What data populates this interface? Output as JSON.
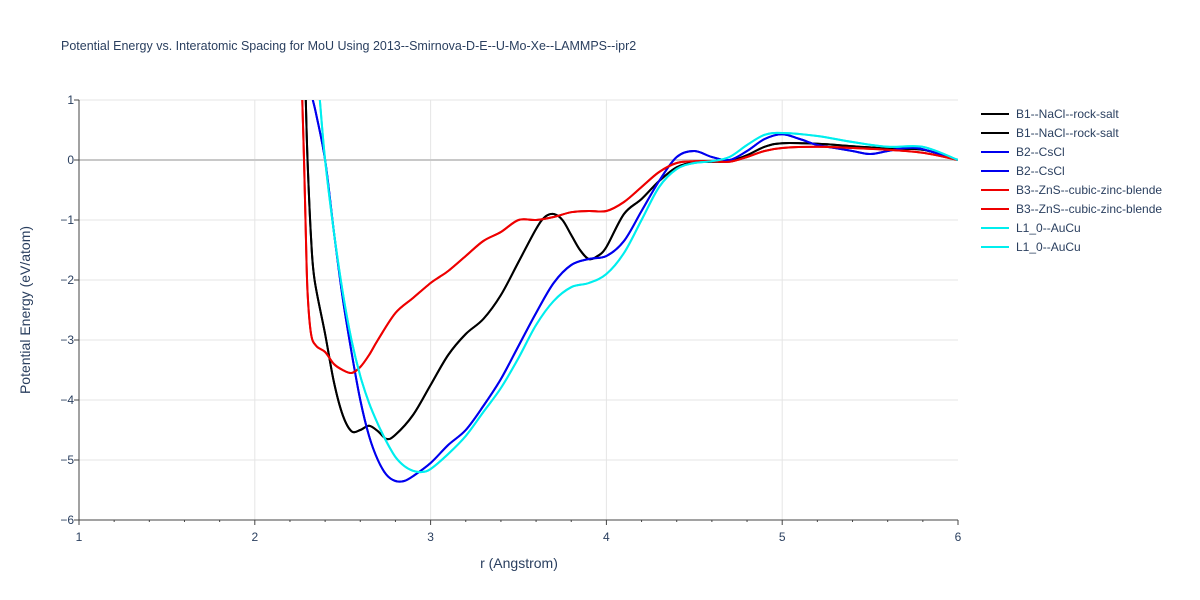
{
  "chart_data": {
    "type": "line",
    "title": "Potential Energy vs. Interatomic Spacing for MoU Using 2013--Smirnova-D-E--U-Mo-Xe--LAMMPS--ipr2",
    "xlabel": "r (Angstrom)",
    "ylabel": "Potential Energy (eV/atom)",
    "xlim": [
      1,
      6
    ],
    "ylim": [
      -6,
      1
    ],
    "x_ticks": [
      "1",
      "2",
      "3",
      "4",
      "5",
      "6"
    ],
    "y_ticks": [
      "1",
      "0",
      "−1",
      "−2",
      "−3",
      "−4",
      "−5",
      "−6"
    ],
    "grid": true,
    "legend_position": "top-right",
    "series": [
      {
        "name": "B1--NaCl--rock-salt",
        "color": "#000000",
        "x": [
          2.29,
          2.3,
          2.32,
          2.34,
          2.4,
          2.45,
          2.5,
          2.55,
          2.6,
          2.65,
          2.7,
          2.75,
          2.8,
          2.9,
          3.0,
          3.1,
          3.2,
          3.3,
          3.4,
          3.5,
          3.6,
          3.65,
          3.7,
          3.75,
          3.8,
          3.85,
          3.9,
          3.95,
          4.0,
          4.1,
          4.2,
          4.3,
          4.4,
          4.5,
          4.6,
          4.7,
          4.8,
          4.9,
          5.0,
          5.2,
          5.4,
          5.6,
          5.8,
          6.0
        ],
        "y": [
          1.0,
          0.0,
          -1.3,
          -2.0,
          -2.9,
          -3.7,
          -4.25,
          -4.52,
          -4.5,
          -4.43,
          -4.52,
          -4.65,
          -4.58,
          -4.25,
          -3.75,
          -3.25,
          -2.9,
          -2.65,
          -2.25,
          -1.7,
          -1.15,
          -0.95,
          -0.9,
          -1.0,
          -1.25,
          -1.5,
          -1.65,
          -1.6,
          -1.45,
          -0.9,
          -0.65,
          -0.35,
          -0.12,
          -0.04,
          -0.03,
          -0.02,
          0.08,
          0.22,
          0.28,
          0.27,
          0.23,
          0.19,
          0.17,
          0.0
        ]
      },
      {
        "name": "B1--NaCl--rock-salt",
        "color": "#000000",
        "x": [
          2.29,
          2.3,
          2.32,
          2.34,
          2.4,
          2.45,
          2.5,
          2.55,
          2.6,
          2.65,
          2.7,
          2.75,
          2.8,
          2.9,
          3.0,
          3.1,
          3.2,
          3.3,
          3.4,
          3.5,
          3.6,
          3.65,
          3.7,
          3.75,
          3.8,
          3.85,
          3.9,
          3.95,
          4.0,
          4.1,
          4.2,
          4.3,
          4.4,
          4.5,
          4.6,
          4.7,
          4.8,
          4.9,
          5.0,
          5.2,
          5.4,
          5.6,
          5.8,
          6.0
        ],
        "y": [
          1.0,
          0.0,
          -1.3,
          -2.0,
          -2.9,
          -3.7,
          -4.25,
          -4.52,
          -4.5,
          -4.43,
          -4.52,
          -4.65,
          -4.58,
          -4.25,
          -3.75,
          -3.25,
          -2.9,
          -2.65,
          -2.25,
          -1.7,
          -1.15,
          -0.95,
          -0.9,
          -1.0,
          -1.25,
          -1.5,
          -1.65,
          -1.6,
          -1.45,
          -0.9,
          -0.65,
          -0.35,
          -0.12,
          -0.04,
          -0.03,
          -0.02,
          0.08,
          0.22,
          0.28,
          0.27,
          0.23,
          0.19,
          0.17,
          0.0
        ]
      },
      {
        "name": "B2--CsCl",
        "color": "#0000ee",
        "x": [
          2.33,
          2.35,
          2.4,
          2.45,
          2.5,
          2.55,
          2.6,
          2.65,
          2.7,
          2.75,
          2.8,
          2.85,
          2.9,
          3.0,
          3.1,
          3.2,
          3.3,
          3.4,
          3.5,
          3.6,
          3.7,
          3.8,
          3.9,
          4.0,
          4.1,
          4.2,
          4.3,
          4.4,
          4.5,
          4.6,
          4.7,
          4.8,
          4.9,
          5.0,
          5.1,
          5.2,
          5.3,
          5.4,
          5.5,
          5.6,
          5.7,
          5.8,
          6.0
        ],
        "y": [
          1.0,
          0.75,
          0.0,
          -1.2,
          -2.3,
          -3.2,
          -4.0,
          -4.6,
          -5.0,
          -5.25,
          -5.35,
          -5.35,
          -5.27,
          -5.05,
          -4.75,
          -4.5,
          -4.1,
          -3.65,
          -3.1,
          -2.55,
          -2.05,
          -1.75,
          -1.65,
          -1.6,
          -1.35,
          -0.85,
          -0.35,
          0.05,
          0.15,
          0.05,
          0.0,
          0.15,
          0.35,
          0.43,
          0.35,
          0.25,
          0.2,
          0.15,
          0.1,
          0.15,
          0.2,
          0.18,
          0.0
        ]
      },
      {
        "name": "B2--CsCl",
        "color": "#0000ee",
        "x": [
          2.33,
          2.35,
          2.4,
          2.45,
          2.5,
          2.55,
          2.6,
          2.65,
          2.7,
          2.75,
          2.8,
          2.85,
          2.9,
          3.0,
          3.1,
          3.2,
          3.3,
          3.4,
          3.5,
          3.6,
          3.7,
          3.8,
          3.9,
          4.0,
          4.1,
          4.2,
          4.3,
          4.4,
          4.5,
          4.6,
          4.7,
          4.8,
          4.9,
          5.0,
          5.1,
          5.2,
          5.3,
          5.4,
          5.5,
          5.6,
          5.7,
          5.8,
          6.0
        ],
        "y": [
          1.0,
          0.75,
          0.0,
          -1.2,
          -2.3,
          -3.2,
          -4.0,
          -4.6,
          -5.0,
          -5.25,
          -5.35,
          -5.35,
          -5.27,
          -5.05,
          -4.75,
          -4.5,
          -4.1,
          -3.65,
          -3.1,
          -2.55,
          -2.05,
          -1.75,
          -1.65,
          -1.6,
          -1.35,
          -0.85,
          -0.35,
          0.05,
          0.15,
          0.05,
          0.0,
          0.15,
          0.35,
          0.43,
          0.35,
          0.25,
          0.2,
          0.15,
          0.1,
          0.15,
          0.2,
          0.18,
          0.0
        ]
      },
      {
        "name": "B3--ZnS--cubic-zinc-blende",
        "color": "#ee0000",
        "x": [
          2.27,
          2.28,
          2.29,
          2.3,
          2.32,
          2.35,
          2.4,
          2.45,
          2.5,
          2.55,
          2.6,
          2.65,
          2.7,
          2.8,
          2.9,
          3.0,
          3.05,
          3.1,
          3.2,
          3.3,
          3.4,
          3.5,
          3.6,
          3.7,
          3.8,
          3.9,
          4.0,
          4.1,
          4.2,
          4.3,
          4.4,
          4.5,
          4.6,
          4.7,
          4.8,
          4.9,
          5.0,
          5.2,
          5.4,
          5.6,
          5.8,
          6.0
        ],
        "y": [
          1.0,
          0.0,
          -1.2,
          -2.2,
          -2.9,
          -3.1,
          -3.2,
          -3.4,
          -3.5,
          -3.55,
          -3.45,
          -3.25,
          -3.0,
          -2.55,
          -2.3,
          -2.05,
          -1.95,
          -1.85,
          -1.6,
          -1.35,
          -1.2,
          -1.0,
          -1.0,
          -0.95,
          -0.87,
          -0.85,
          -0.85,
          -0.7,
          -0.45,
          -0.2,
          -0.05,
          -0.02,
          -0.02,
          -0.03,
          0.05,
          0.15,
          0.2,
          0.22,
          0.2,
          0.17,
          0.12,
          0.0
        ]
      },
      {
        "name": "B3--ZnS--cubic-zinc-blende",
        "color": "#ee0000",
        "x": [
          2.27,
          2.28,
          2.29,
          2.3,
          2.32,
          2.35,
          2.4,
          2.45,
          2.5,
          2.55,
          2.6,
          2.65,
          2.7,
          2.8,
          2.9,
          3.0,
          3.05,
          3.1,
          3.2,
          3.3,
          3.4,
          3.5,
          3.6,
          3.7,
          3.8,
          3.9,
          4.0,
          4.1,
          4.2,
          4.3,
          4.4,
          4.5,
          4.6,
          4.7,
          4.8,
          4.9,
          5.0,
          5.2,
          5.4,
          5.6,
          5.8,
          6.0
        ],
        "y": [
          1.0,
          0.0,
          -1.2,
          -2.2,
          -2.9,
          -3.1,
          -3.2,
          -3.4,
          -3.5,
          -3.55,
          -3.45,
          -3.25,
          -3.0,
          -2.55,
          -2.3,
          -2.05,
          -1.95,
          -1.85,
          -1.6,
          -1.35,
          -1.2,
          -1.0,
          -1.0,
          -0.95,
          -0.87,
          -0.85,
          -0.85,
          -0.7,
          -0.45,
          -0.2,
          -0.05,
          -0.02,
          -0.02,
          -0.03,
          0.05,
          0.15,
          0.2,
          0.22,
          0.2,
          0.17,
          0.12,
          0.0
        ]
      },
      {
        "name": "L1_0--AuCu",
        "color": "#00eeee",
        "x": [
          2.37,
          2.4,
          2.45,
          2.5,
          2.55,
          2.6,
          2.65,
          2.7,
          2.75,
          2.8,
          2.85,
          2.9,
          2.95,
          3.0,
          3.1,
          3.2,
          3.3,
          3.4,
          3.5,
          3.6,
          3.7,
          3.8,
          3.9,
          4.0,
          4.1,
          4.2,
          4.3,
          4.4,
          4.5,
          4.6,
          4.7,
          4.8,
          4.9,
          5.0,
          5.2,
          5.4,
          5.6,
          5.8,
          6.0
        ],
        "y": [
          1.0,
          0.0,
          -1.2,
          -2.2,
          -3.0,
          -3.6,
          -4.05,
          -4.4,
          -4.7,
          -4.95,
          -5.1,
          -5.18,
          -5.2,
          -5.15,
          -4.9,
          -4.6,
          -4.2,
          -3.8,
          -3.3,
          -2.75,
          -2.35,
          -2.12,
          -2.05,
          -1.9,
          -1.55,
          -1.0,
          -0.45,
          -0.15,
          -0.05,
          -0.02,
          0.05,
          0.25,
          0.42,
          0.45,
          0.4,
          0.3,
          0.22,
          0.22,
          0.0
        ]
      },
      {
        "name": "L1_0--AuCu",
        "color": "#00eeee",
        "x": [
          2.37,
          2.4,
          2.45,
          2.5,
          2.55,
          2.6,
          2.65,
          2.7,
          2.75,
          2.8,
          2.85,
          2.9,
          2.95,
          3.0,
          3.1,
          3.2,
          3.3,
          3.4,
          3.5,
          3.6,
          3.7,
          3.8,
          3.9,
          4.0,
          4.1,
          4.2,
          4.3,
          4.4,
          4.5,
          4.6,
          4.7,
          4.8,
          4.9,
          5.0,
          5.2,
          5.4,
          5.6,
          5.8,
          6.0
        ],
        "y": [
          1.0,
          0.0,
          -1.2,
          -2.2,
          -3.0,
          -3.6,
          -4.05,
          -4.4,
          -4.7,
          -4.95,
          -5.1,
          -5.18,
          -5.2,
          -5.15,
          -4.9,
          -4.6,
          -4.2,
          -3.8,
          -3.3,
          -2.75,
          -2.35,
          -2.12,
          -2.05,
          -1.9,
          -1.55,
          -1.0,
          -0.45,
          -0.15,
          -0.05,
          -0.02,
          0.05,
          0.25,
          0.42,
          0.45,
          0.4,
          0.3,
          0.22,
          0.22,
          0.0
        ]
      }
    ]
  }
}
